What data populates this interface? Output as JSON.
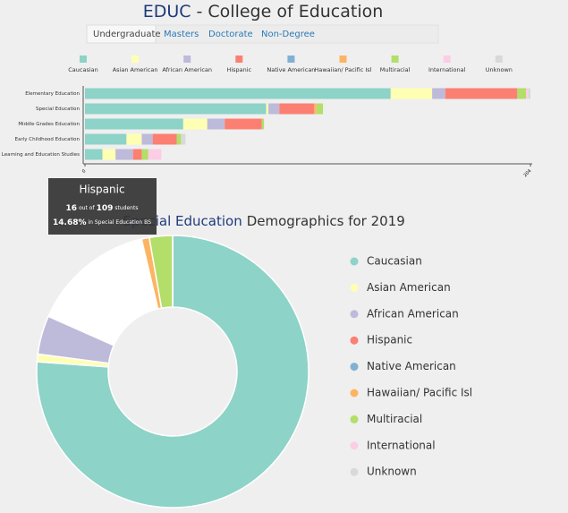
{
  "header": {
    "code": "EDUC",
    "title": "- College of Education"
  },
  "tabs": [
    "Undergraduate",
    "Masters",
    "Doctorate",
    "Non-Degree"
  ],
  "tooltip": {
    "title": "Hispanic",
    "count": 16,
    "out_of": "out of",
    "total": 109,
    "unit": "students",
    "percent": "14.68%",
    "context": "in Special Education BS"
  },
  "chart_data": [
    {
      "type": "stacked-bar",
      "categories": [
        "Elementary Education",
        "Special Education",
        "Middle Grades Education",
        "Early Childhood Education",
        "Learning and Education Studies"
      ],
      "series": [
        {
          "name": "Caucasian",
          "color": "#8dd3c7",
          "values": [
            140,
            83,
            45,
            19,
            8
          ]
        },
        {
          "name": "Asian American",
          "color": "#ffffb3",
          "values": [
            19,
            1,
            11,
            7,
            6
          ]
        },
        {
          "name": "African American",
          "color": "#bebada",
          "values": [
            6,
            5,
            8,
            5,
            8
          ]
        },
        {
          "name": "Hispanic",
          "color": "#fb8072",
          "values": [
            33,
            16,
            17,
            11,
            4
          ]
        },
        {
          "name": "Native American",
          "color": "#80b1d3",
          "values": [
            0,
            0,
            0,
            0,
            0
          ]
        },
        {
          "name": "Hawaiian/ Pacific Isl",
          "color": "#fdb462",
          "values": [
            0,
            1,
            0,
            0,
            0
          ]
        },
        {
          "name": "Multiracial",
          "color": "#b3de69",
          "values": [
            4,
            3,
            1,
            2,
            3
          ]
        },
        {
          "name": "International",
          "color": "#fccde5",
          "values": [
            1,
            0,
            0,
            0,
            6
          ]
        },
        {
          "name": "Unknown",
          "color": "#d9d9d9",
          "values": [
            1,
            0,
            0,
            2,
            0
          ]
        }
      ],
      "xlim": [
        0,
        204
      ],
      "xticks": [
        0,
        204
      ]
    },
    {
      "type": "donut",
      "title_highlight": "Special Education",
      "title": "Demographics for 2019",
      "categories": [
        "Caucasian",
        "Asian American",
        "African American",
        "Hispanic",
        "Native American",
        "Hawaiian/ Pacific Isl",
        "Multiracial",
        "International",
        "Unknown"
      ],
      "values": [
        83,
        1,
        5,
        16,
        0,
        1,
        3,
        0,
        0
      ],
      "colors": [
        "#8dd3c7",
        "#ffffb3",
        "#bebada",
        "#fb8072",
        "#80b1d3",
        "#fdb462",
        "#b3de69",
        "#fccde5",
        "#d9d9d9"
      ]
    }
  ]
}
